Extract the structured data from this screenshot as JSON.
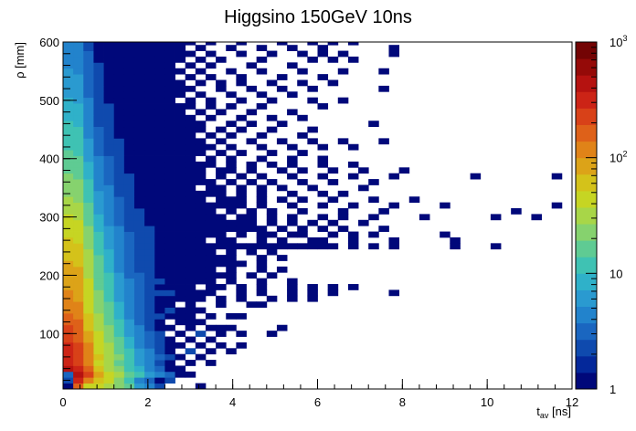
{
  "chart_data": {
    "type": "heatmap",
    "title": "Higgsino 150GeV 10ns",
    "xlabel": {
      "main": "t",
      "sub": "av",
      "unit": " [ns]"
    },
    "ylabel": "ρ [mm]",
    "xlim": [
      0,
      12
    ],
    "ylim": [
      5,
      600
    ],
    "x_ticks": [
      "0",
      "2",
      "4",
      "6",
      "8",
      "10",
      "12"
    ],
    "y_ticks": [
      "100",
      "200",
      "300",
      "400",
      "500",
      "600"
    ],
    "colorbar": {
      "scale": "log",
      "range": [
        1,
        1000
      ],
      "ticks": [
        {
          "value": 1,
          "base": "1",
          "exp": ""
        },
        {
          "value": 10,
          "base": "10",
          "exp": ""
        },
        {
          "value": 100,
          "base": "10",
          "exp": "2"
        },
        {
          "value": 1000,
          "base": "10",
          "exp": "3"
        }
      ],
      "colors": [
        "#00087a",
        "#04289a",
        "#0f4aae",
        "#1a66c0",
        "#2283cc",
        "#2a9ad0",
        "#2fb1c9",
        "#3fc2b3",
        "#5fcb93",
        "#86d26e",
        "#a8d648",
        "#c6d523",
        "#d4c21a",
        "#dca318",
        "#e08318",
        "#de6119",
        "#d84118",
        "#cc2416",
        "#b51210",
        "#950a08",
        "#730404"
      ]
    },
    "grid": false,
    "bins": {
      "x_width": 0.24,
      "y_width": 10,
      "y_start": 5
    },
    "cells_text": [
      "0:1,1:150,2:50,3:40,4:30,5:20,6:15,7:6,8:4,9:2,13:1",
      "0:2,1:300,2:120,3:60,4:40,5:20,6:10,7:5,8:3,9:1,10:2",
      "0:3,1:400,2:200,3:80,4:50,5:30,6:18,7:10,8:6,9:4,10:3,11:1,12:1",
      "0:400,1:300,2:150,3:60,4:35,5:22,6:12,7:8,8:5,9:3,10:1,11:1",
      "0:300,1:250,2:120,3:50,4:30,5:18,6:10,7:6,8:4,9:2,10:1,12:1,14:1",
      "0:350,1:250,2:130,3:55,4:32,5:20,6:11,7:7,8:4,9:3,10:2,11:1,13:1",
      "0:300,1:220,2:110,3:50,4:30,5:18,6:10,7:6,8:4,9:2,10:1,12:2,14:1,16:1",
      "0:280,1:200,2:100,3:45,4:28,5:16,6:9,7:5,8:3,9:2,10:1,11:1,13:1,15:1,17:1",
      "0:250,1:180,2:90,3:40,4:25,5:14,6:8,7:5,8:3,9:2,10:1,12:1,14:1",
      "0:230,1:160,2:80,3:38,4:22,5:13,6:7,7:4,8:3,9:2,11:1,13:2,15:1,17:1,20:1",
      "0:200,1:150,2:70,3:35,4:20,5:12,6:7,7:4,8:2,9:1,10:1,12:1,14:1,15:1,16:1,21:1",
      "0:180,1:140,2:60,3:30,4:18,5:10,6:6,7:3,8:2,9:1,11:1,12:1,13:1",
      "0:150,1:120,2:55,3:28,4:16,5:9,6:5,7:3,8:2,9:2,10:1,11:1,12:1,14:1,16:1,17:1",
      "0:130,1:110,2:50,3:25,4:15,5:8,6:5,7:3,8:2,9:1,10:2,11:1,12:1,13:1",
      "0:120,1:100,2:48,3:22,4:14,5:8,6:4,7:3,8:2,9:1,10:1,12:1,15:1,18:1,19:1",
      "0:110,1:95,2:45,3:21,4:13,5:7,6:4,7:3,8:2,9:1,10:1,11:1,12:1,13:1,15:1,17:1,20:1,22:1,24:1",
      "0:100,1:90,2:42,3:20,4:12,5:7,6:4,7:3,8:2,9:2,10:2,11:1,12:1,13:1,14:1,17:1,19:1,22:1,24:1,26:1,32:1",
      "0:95,1:85,2:40,3:19,4:11,5:6,6:4,7:3,8:2,9:1,10:1,11:1,12:1,14:1,15:1,17:1,19:1,22:1,24:1,26:1,28:1",
      "0:90,1:80,2:38,3:18,4:10,5:6,6:4,7:3,8:2,9:2,10:1,11:1,12:1,13:1,14:1,16:1,19:1,22:1",
      "0:85,1:75,2:36,3:17,4:10,5:6,6:3,7:3,8:2,9:1,10:1,11:1,12:1,13:1,14:1,15:1,16:1,18:1,20:1",
      "0:80,1:72,2:34,3:16,4:9,5:5,6:3,7:2,8:2,9:1,10:1,11:1,12:1,13:1,14:1,16:1,19:1,21:1",
      "0:75,1:68,2:32,3:15,4:9,5:5,6:3,7:2,8:2,9:1,10:1,11:1,12:1,13:1,14:1,15:1,16:1,17:1,19:1",
      "0:70,1:65,2:30,3:14,4:8,5:5,6:3,7:2,8:2,9:1,10:1,11:1,12:1,13:1,14:1,15:1,16:1,19:1,21:1",
      "0:65,1:60,2:28,3:13,4:8,5:5,6:3,7:2,8:2,9:1,10:1,11:1,12:1,13:1,14:1,16:1,18:1,20:1",
      "0:60,1:55,2:26,3:12,4:7,5:4,6:3,7:2,8:2,9:1,10:1,11:1,12:1,13:1,14:1,15:1,16:1,17:1,18:1,19:1,20:1,21:1,22:1,23:1,24:1,25:1,26:1,28:1,30:1,32:1,38:1,42:1",
      "0:55,1:50,2:24,3:11,4:7,5:4,6:3,7:2,8:2,9:1,10:1,11:1,12:1,13:1,15:1,16:1,19:1,21:1,24:1,25:1,28:1,32:1,38:1",
      "0:50,1:46,2:22,3:10,4:6,5:4,6:3,7:2,8:2,9:1,10:1,11:1,12:1,13:1,14:1,15:1,17:1,19:1,20:1,22:1,23:1,26:1,28:1,30:1,37:1",
      "0:46,1:42,2:20,3:9,4:6,5:4,6:2,7:2,8:2,9:1,10:1,11:1,12:1,13:1,14:1,15:1,16:1,17:1,18:1,19:1,21:1,23:1,25:1,27:1,31:1",
      "0:42,1:38,2:18,3:9,4:5,5:3,6:2,7:2,8:1,9:1,10:1,11:1,12:1,13:1,14:1,15:1,16:1,17:1,18:1,20:1,22:1,24:1,26:1,29:1",
      "0:38,1:35,2:16,3:8,4:5,5:3,6:2,7:2,8:1,9:1,10:1,11:1,12:1,13:1,14:1,15:1,17:1,18:1,20:1,22:1,25:1,27:1,30:1,35:1,42:1,46:1",
      "0:34,1:32,2:15,3:7,4:5,5:3,6:2,7:2,8:1,9:1,10:1,11:1,12:1,13:1,14:1,16:1,18:1,20:1,23:1,27:1,31:1,44:1",
      "0:30,1:28,2:14,3:7,4:4,5:3,6:2,7:1,8:1,9:1,10:1,11:1,12:1,13:1,14:1,15:1,16:1,17:1,19:1,22:1,25:1,28:1,32:1,37:1,48:1",
      "0:28,1:26,2:13,3:6,4:4,5:3,6:2,7:1,8:1,9:1,10:1,11:1,12:1,13:1,15:1,16:1,17:1,19:1,21:1,23:1,26:1,30:1,34:1",
      "0:26,1:24,2:12,3:6,4:4,5:2,6:2,7:1,8:1,9:1,10:1,11:1,12:1,13:1,14:1,15:1,17:1,19:1,22:1,25:1,27:1",
      "0:24,1:22,2:11,3:5,4:4,5:2,6:2,7:1,8:1,9:1,10:1,11:1,12:1,14:1,15:1,17:1,19:1,21:1,24:1,29:1",
      "0:22,1:20,2:10,3:5,4:3,5:2,6:2,7:1,8:1,9:1,10:1,11:1,12:1,13:1,14:1,16:1,18:1,20:1,23:1,26:1,30:1",
      "0:20,1:18,2:9,3:5,4:3,5:2,6:2,7:1,8:1,9:1,10:1,11:1,12:1,13:1,15:1,17:1,19:1,22:1,25:1,28:1,32:1,40:1,48:1,52:1",
      "0:18,1:17,2:8,3:4,4:3,5:2,6:1,7:1,8:1,9:1,10:1,11:1,12:1,13:1,15:1,16:1,18:1,21:1,23:1,26:1,29:1,33:1",
      "0:16,1:15,2:8,3:4,4:3,5:2,6:1,7:1,8:1,9:1,10:1,11:1,12:1,13:1,14:1,16:1,18:1,20:1,22:1,25:1,28:1",
      "0:15,1:14,2:7,3:4,4:3,5:2,6:1,7:1,8:1,9:1,10:1,11:1,12:1,14:1,16:1,19:1,22:1,25:1",
      "0:14,1:13,2:6,3:3,4:2,5:2,6:1,7:1,8:1,9:1,10:1,11:1,12:1,13:1,15:1,17:1,20:1,23:1",
      "0:13,1:12,2:6,3:3,4:2,5:2,6:1,7:1,8:1,9:1,10:1,11:1,12:1,13:1,14:1,16:1,19:1,22:1,25:1,28:1",
      "0:12,1:11,2:6,3:3,4:2,5:2,6:1,7:1,8:1,9:1,10:1,11:1,12:1,13:1,15:1,18:1,21:1,24:1,27:1,31:1",
      "0:11,1:10,2:5,3:3,4:2,5:1,6:1,7:1,8:1,9:1,10:1,11:1,12:1,14:1,16:1,19:1,23:1",
      "0:10,1:10,2:5,3:3,4:2,5:1,6:1,7:1,8:1,9:1,10:1,11:1,12:1,13:1,15:1,17:1,20:1,24:1",
      "0:10,1:9,2:5,3:2,4:2,5:1,6:1,7:1,8:1,9:1,10:1,11:1,12:1,13:1,16:1,18:1,21:1,30:1",
      "0:9,1:9,2:4,3:2,4:2,5:1,6:1,7:1,8:1,9:1,10:1,11:1,12:1,14:1,17:1,20:1,23:1",
      "0:9,1:8,2:4,3:2,4:2,5:1,6:1,7:1,8:1,9:1,10:1,11:1,13:1,15:1,18:1,22:1",
      "0:8,1:8,2:4,3:2,4:2,5:1,6:1,7:1,8:1,9:1,10:1,11:1,12:1,14:1,16:1,19:1,25:1",
      "0:8,1:7,2:4,3:2,4:1,5:1,6:1,7:1,8:1,9:1,10:1,12:1,14:1,17:1,20:1,24:1,27:1",
      "0:7,1:7,2:3,3:2,4:1,5:1,6:1,7:1,8:1,9:1,10:1,11:1,13:1,16:1,19:1,22:1",
      "0:7,1:6,2:3,3:2,4:1,5:1,6:1,7:1,8:1,9:1,10:1,11:1,12:1,15:1,18:1,21:1,24:1,31:1",
      "0:6,1:6,2:3,3:2,4:1,5:1,6:1,7:1,8:1,9:1,10:1,11:1,13:1,15:1,17:1,20:1,23:1,26:1",
      "0:6,1:6,2:3,3:2,4:1,5:1,6:1,7:1,8:1,9:1,10:1,12:1,14:1,17:1,21:1,25:1",
      "0:6,1:5,2:3,3:2,4:1,5:1,6:1,7:1,8:1,9:1,10:1,11:1,13:1,16:1,19:1,23:1,27:1,31:1",
      "0:5,1:5,2:3,3:2,4:1,5:1,6:1,7:1,8:1,9:1,10:1,12:1,14:1,18:1,22:1",
      "0:5,1:5,2:3,3:1,4:1,5:1,6:1,7:1,8:1,9:1,10:1,11:1,13:1,15:1,19:1,24:1,26:1,28:1",
      "0:5,1:4,2:3,3:1,4:1,5:1,6:1,7:1,8:1,9:1,10:1,11:1,12:1,14:1,17:1,20:1,23:1,25:1,27:1,32:1",
      "0:4,1:4,2:2,3:1,4:1,5:1,6:1,7:1,8:1,9:1,10:1,11:1,13:1,16:1,19:1,22:1,25:1,32:1",
      "0:4,1:4,2:2,3:1,4:1,5:1,6:1,7:1,8:1,9:1,10:1,11:1,12:1,14:1,17:1,21:1,24:1,26:1,28:1"
    ]
  }
}
